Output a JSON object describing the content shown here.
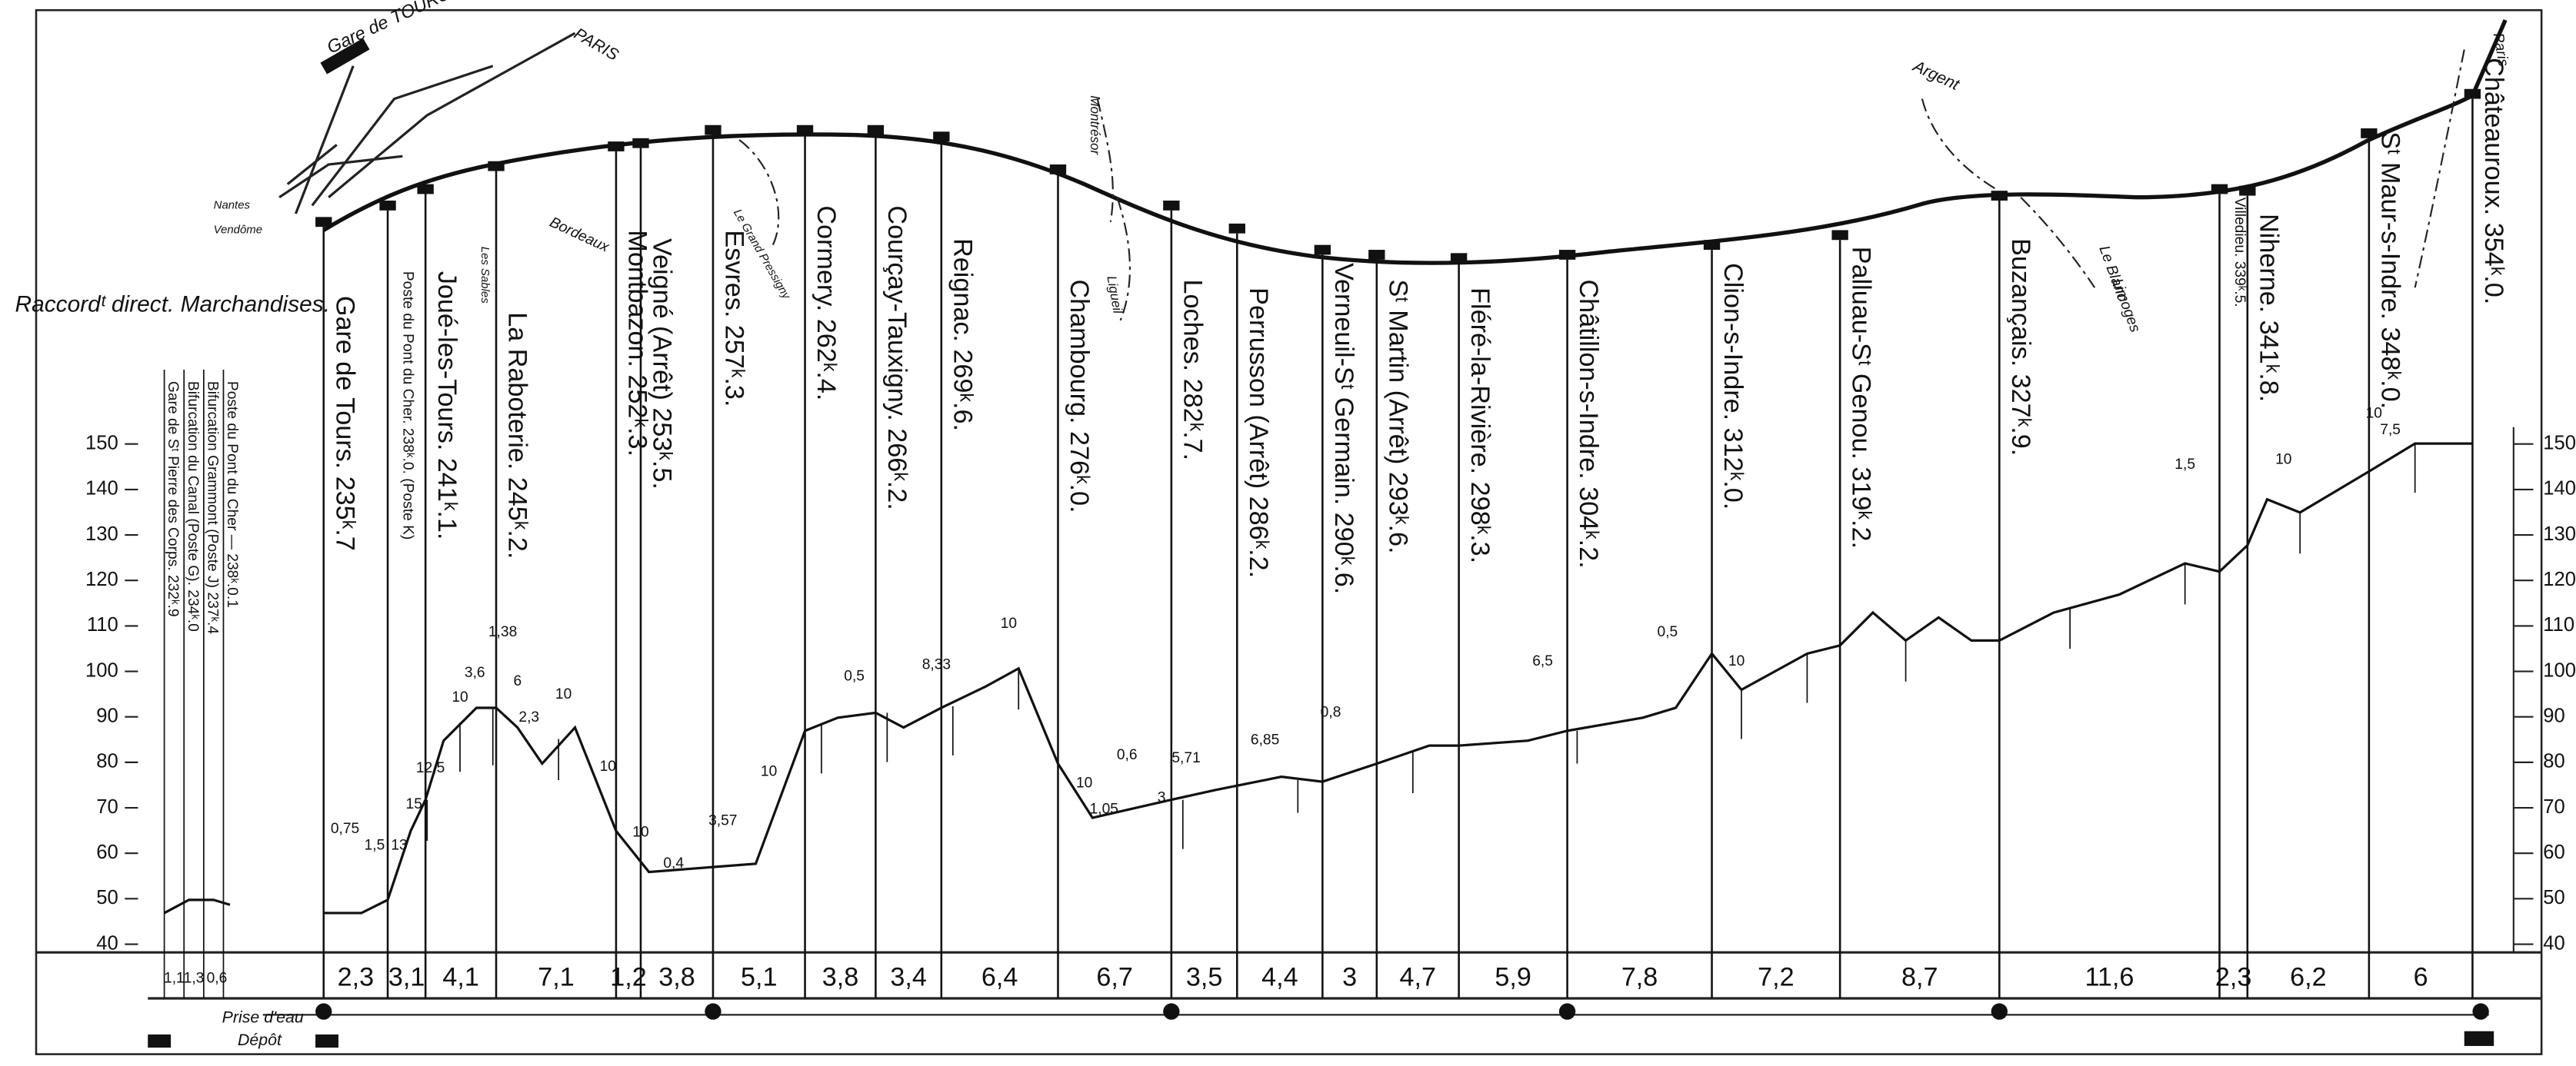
{
  "title_left": "Raccordᵗ direct. Marchandises.",
  "map_labels": [
    "Gare de TOURS",
    "PARIS",
    "Bordeaux",
    "Les Sables",
    "Nantes",
    "Vendôme",
    "Montrésor",
    "Le Grand Pressigny",
    "Ligueil",
    "Argent",
    "Le Blanc",
    "Limoges",
    "Paris"
  ],
  "left_stations": [
    "Gare de Sᵗ Pierre des Corps. 232ᵏ.9",
    "Bifurcation du Canal (Poste G). 234ᵏ.0",
    "Bifurcation Grammont (Poste J) 237ᵏ.4",
    "Poste du Pont du Cher — 238ᵏ.0.1"
  ],
  "left_distances": [
    "1,1",
    "1,3",
    "0,6"
  ],
  "stations": [
    "Gare de Tours. 235ᵏ.7",
    "Poste du Pont du Cher. 238ᵏ.0. (Poste K)",
    "Joué-les-Tours. 241ᵏ.1.",
    "La Raboterie. 245ᵏ.2.",
    "Montbazon. 252ᵏ.3.",
    "Veigné (Arrêt) 253ᵏ.5.",
    "Esvres. 257ᵏ.3.",
    "Cormery. 262ᵏ.4.",
    "Courçay-Tauxigny. 266ᵏ.2.",
    "Reignac. 269ᵏ.6.",
    "Chambourg. 276ᵏ.0.",
    "Loches. 282ᵏ.7.",
    "Perrusson (Arrêt) 286ᵏ.2.",
    "Verneuil-Sᵗ Germain. 290ᵏ.6.",
    "Sᵗ Martin (Arrêt) 293ᵏ.6.",
    "Fléré-la-Rivière. 298ᵏ.3.",
    "Châtillon-s-Indre. 304ᵏ.2.",
    "Clion-s-Indre. 312ᵏ.0.",
    "Palluau-Sᵗ Genou. 319ᵏ.2.",
    "Buzançais. 327ᵏ.9.",
    "Villedieu. 339ᵏ.5.",
    "Niherne. 341ᵏ.8.",
    "Sᵗ Maur-s-Indre. 348ᵏ.0.",
    "Châteauroux. 354ᵏ.0."
  ],
  "distances": [
    "2,3",
    "3,1",
    "4,1",
    "7,1",
    "1,2",
    "3,8",
    "5,1",
    "3,8",
    "3,4",
    "6,4",
    "6,7",
    "3,5",
    "4,4",
    "3",
    "4,7",
    "5,9",
    "7,8",
    "7,2",
    "8,7",
    "11,6",
    "2,3",
    "6,2",
    "6"
  ],
  "altitude_ticks": [
    40,
    50,
    60,
    70,
    80,
    90,
    100,
    110,
    120,
    130,
    140,
    150
  ],
  "gradient_labels": [
    "0,75",
    "1,5",
    "13",
    "15",
    "12,5",
    "3,6",
    "1,38",
    "10",
    "6",
    "2,3",
    "10",
    "10",
    "10",
    "0,4",
    "3,57",
    "10",
    "0,5",
    "8,33",
    "10",
    "10",
    "1,05",
    "0,6",
    "3",
    "5,71",
    "6,85",
    "0,8",
    "6,5",
    "0,5",
    "10",
    "1,5",
    "10",
    "7,5",
    "10"
  ],
  "water_label": "Prise d'eau",
  "depot_label": "Dépôt"
}
